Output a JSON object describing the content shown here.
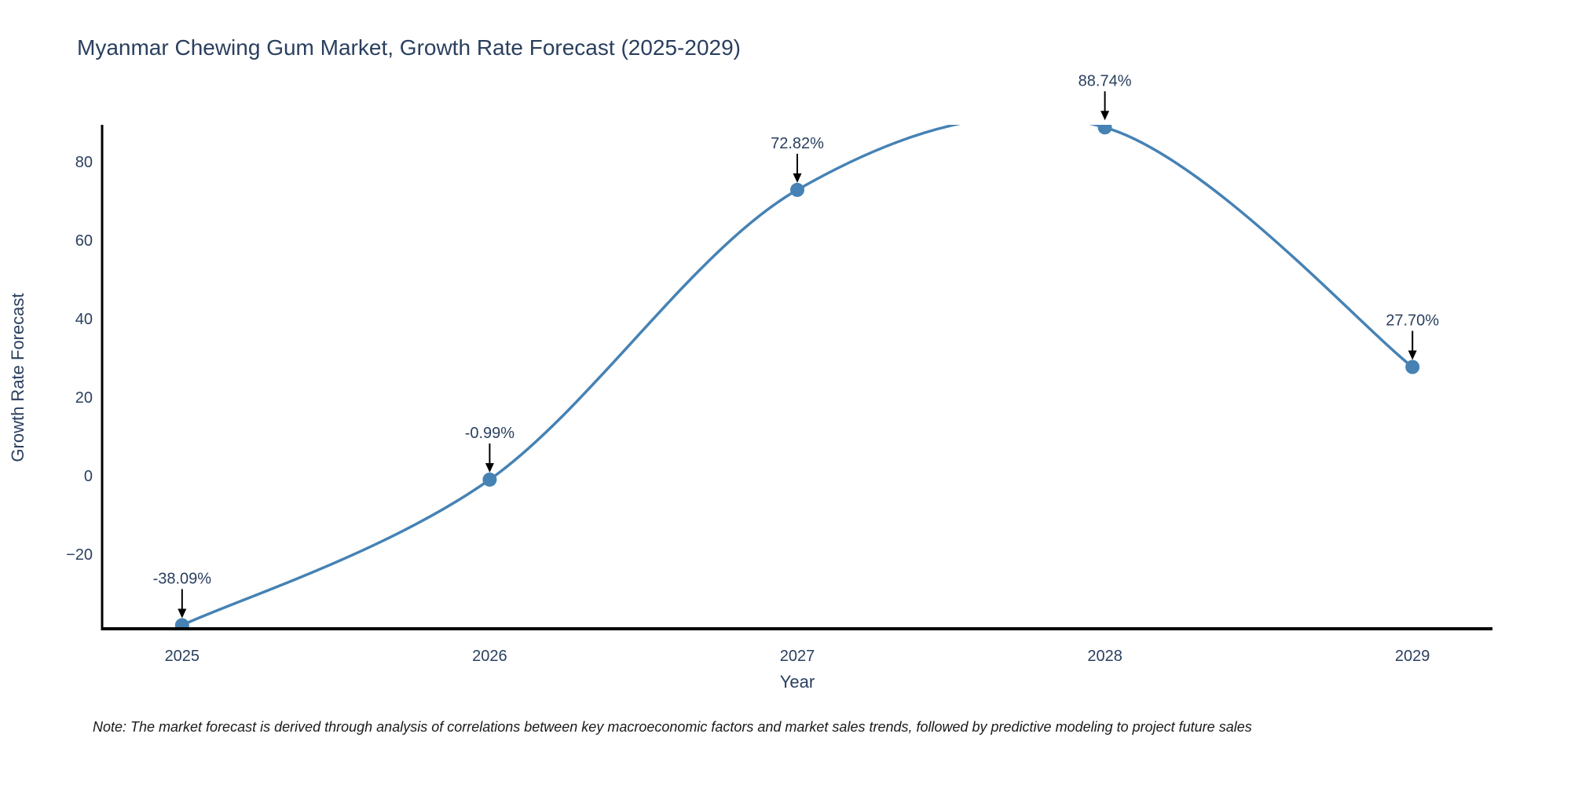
{
  "note": "Note: The market forecast is derived through analysis of correlations between key macroeconomic factors and market sales trends, followed by predictive modeling to project future sales",
  "chart_data": {
    "type": "line",
    "title": "Myanmar Chewing Gum Market, Growth Rate Forecast (2025-2029)",
    "xlabel": "Year",
    "ylabel": "Growth Rate Forecast",
    "x": [
      2025,
      2026,
      2027,
      2028,
      2029
    ],
    "values": [
      -38.09,
      -0.99,
      72.82,
      88.74,
      27.7
    ],
    "point_labels": [
      "-38.09%",
      "-0.99%",
      "72.82%",
      "88.74%",
      "27.70%"
    ],
    "xticklabels": [
      "2025",
      "2026",
      "2027",
      "2028",
      "2029"
    ],
    "yticks": [
      -20,
      0,
      20,
      40,
      60,
      80
    ],
    "yticklabels": [
      "−20",
      "0",
      "20",
      "40",
      "60",
      "80"
    ],
    "xlim": [
      2024.74,
      2029.26
    ],
    "ylim": [
      -39.0,
      89.4
    ],
    "line_shape": "spline",
    "grid": false,
    "legend": "none",
    "colors": {
      "line": "#4682b4",
      "marker": "#4682b4",
      "axis": "#000000",
      "text": "#2a3f5f",
      "annotation_arrow": "#000000",
      "note_text": "#1a1a1a",
      "background": "#ffffff"
    }
  }
}
